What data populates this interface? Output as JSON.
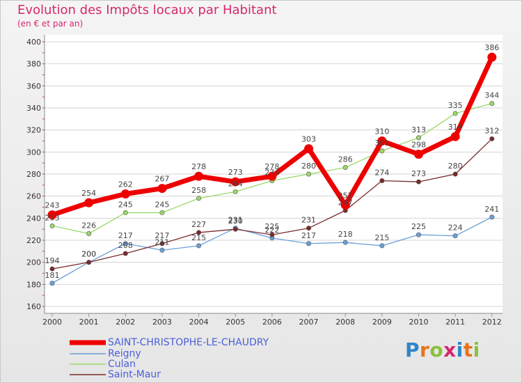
{
  "header": {
    "title": "Evolution des Impôts locaux par Habitant",
    "subtitle": "(en € et par an)"
  },
  "logo": {
    "letters": [
      {
        "ch": "P",
        "color": "#2e86c8"
      },
      {
        "ch": "r",
        "color": "#e8731b"
      },
      {
        "ch": "o",
        "color": "#8ac13a"
      },
      {
        "ch": "x",
        "color": "#d6276e"
      },
      {
        "ch": "i",
        "color": "#2e86c8"
      },
      {
        "ch": "t",
        "color": "#e8731b"
      },
      {
        "ch": "i",
        "color": "#8ac13a"
      }
    ]
  },
  "chart_data": {
    "type": "line",
    "title": "Evolution des Impôts locaux par Habitant",
    "subtitle": "(en € et par an)",
    "xlabel": "",
    "ylabel": "",
    "ylim": [
      160,
      400
    ],
    "yticks": [
      160,
      180,
      200,
      220,
      240,
      260,
      280,
      300,
      320,
      340,
      360,
      380,
      400
    ],
    "x": [
      "2000",
      "2001",
      "2002",
      "2003",
      "2004",
      "2005",
      "2006",
      "2007",
      "2008",
      "2009",
      "2010",
      "2011",
      "2012"
    ],
    "grid": "horizontal",
    "legend_position": "bottom-left",
    "series": [
      {
        "name": "SAINT-CHRISTOPHE-LE-CHAUDRY",
        "color": "#ee0000",
        "values": [
          243,
          254,
          262,
          267,
          278,
          273,
          278,
          303,
          252,
          310,
          298,
          314,
          386
        ]
      },
      {
        "name": "Reigny",
        "color": "#6a9fd8",
        "values": [
          181,
          200,
          217,
          211,
          215,
          231,
          222,
          217,
          218,
          215,
          225,
          224,
          241
        ]
      },
      {
        "name": "Culan",
        "color": "#9ad86a",
        "values": [
          233,
          226,
          245,
          245,
          258,
          264,
          274,
          280,
          286,
          301,
          313,
          335,
          344
        ]
      },
      {
        "name": "Saint-Maur",
        "color": "#7a2a2a",
        "values": [
          194,
          200,
          208,
          217,
          227,
          230,
          225,
          231,
          247,
          274,
          273,
          280,
          312
        ]
      }
    ]
  }
}
